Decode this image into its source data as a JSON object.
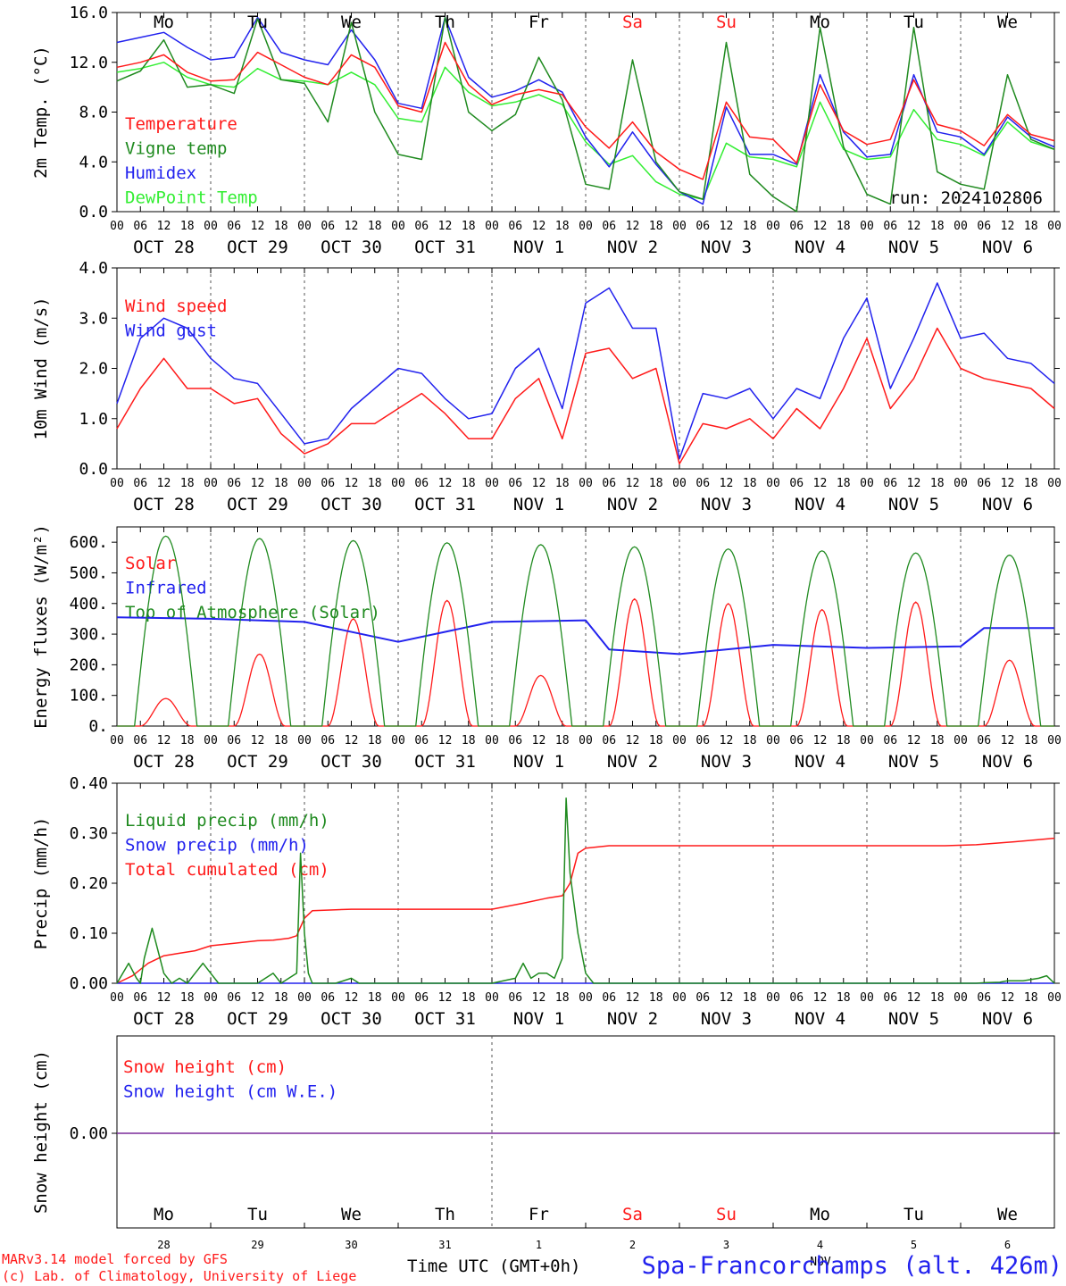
{
  "colors": {
    "red": "#ff1a1a",
    "green": "#1f8a1f",
    "blue": "#2222ee",
    "light_green": "#33ee33",
    "purple": "#7a2a9a",
    "grid": "#555555"
  },
  "day_names": [
    "Mo",
    "Tu",
    "We",
    "Th",
    "Fr",
    "Sa",
    "Su",
    "Mo",
    "Tu",
    "We"
  ],
  "weekend_days": [
    "Sa",
    "Su"
  ],
  "hour_ticks": [
    "00",
    "06",
    "12",
    "18"
  ],
  "date_labels": [
    "OCT 28",
    "OCT 29",
    "OCT 30",
    "OCT 31",
    "NOV  1",
    "NOV  2",
    "NOV  3",
    "NOV  4",
    "NOV  5",
    "NOV  6"
  ],
  "snow_day_numbers": [
    "28",
    "29",
    "30",
    "31",
    "1",
    "2",
    "3",
    "4",
    "5",
    "6"
  ],
  "snow_month_label": "NOV",
  "run_label": "run: 2024102806",
  "xlabel": "Time UTC (GMT+0h)",
  "footer": {
    "model_line": "MARv3.14 model forced by GFS",
    "copyright_line": "(c) Lab. of Climatology, University of Liege",
    "location": "Spa-Francorchamps (alt. 426m)"
  },
  "chart_data": [
    {
      "type": "line",
      "ylabel": "2m Temp. (°C)",
      "ylim": [
        0,
        16
      ],
      "yticks": [
        "0.0",
        "4.0",
        "8.0",
        "12.0",
        "16.0"
      ],
      "x_unit": "hours since Oct 28 00 UTC",
      "series": [
        {
          "name": "Temperature",
          "color": "red",
          "x": [
            0,
            6,
            12,
            18,
            24,
            30,
            36,
            42,
            48,
            54,
            60,
            66,
            72,
            78,
            84,
            90,
            96,
            102,
            108,
            114,
            120,
            126,
            132,
            138,
            144,
            150,
            156,
            162,
            168,
            174,
            180,
            186,
            192,
            198,
            204,
            210,
            216,
            222,
            228,
            234,
            240
          ],
          "y": [
            11.6,
            12.0,
            12.6,
            11.2,
            10.5,
            10.6,
            12.8,
            11.8,
            10.8,
            10.2,
            12.6,
            11.6,
            8.5,
            8.0,
            13.6,
            10.2,
            8.6,
            9.4,
            9.8,
            9.4,
            6.8,
            5.1,
            7.2,
            4.8,
            3.4,
            2.6,
            8.8,
            6.0,
            5.8,
            3.9,
            10.2,
            6.5,
            5.4,
            5.8,
            10.6,
            7.0,
            6.5,
            5.3,
            7.8,
            6.2,
            5.7
          ]
        },
        {
          "name": "Vigne temp",
          "color": "green",
          "x": [
            0,
            6,
            12,
            18,
            24,
            30,
            36,
            42,
            48,
            54,
            60,
            66,
            72,
            78,
            84,
            90,
            96,
            102,
            108,
            114,
            120,
            126,
            132,
            138,
            144,
            150,
            156,
            162,
            168,
            174,
            180,
            186,
            192,
            198,
            204,
            210,
            216,
            222,
            228,
            234,
            240
          ],
          "y": [
            10.5,
            11.3,
            13.8,
            10.0,
            10.2,
            9.5,
            15.5,
            10.6,
            10.3,
            7.2,
            15.2,
            8.0,
            4.6,
            4.2,
            15.6,
            8.0,
            6.5,
            7.8,
            12.4,
            9.0,
            2.2,
            1.8,
            12.2,
            4.0,
            1.6,
            1.0,
            13.6,
            3.0,
            1.2,
            0.0,
            14.8,
            5.2,
            1.4,
            0.6,
            14.8,
            3.2,
            2.2,
            1.8,
            11.0,
            5.8,
            5.0
          ]
        },
        {
          "name": "Humidex",
          "color": "blue",
          "x": [
            0,
            6,
            12,
            18,
            24,
            30,
            36,
            42,
            48,
            54,
            60,
            66,
            72,
            78,
            84,
            90,
            96,
            102,
            108,
            114,
            120,
            126,
            132,
            138,
            144,
            150,
            156,
            162,
            168,
            174,
            180,
            186,
            192,
            198,
            204,
            210,
            216,
            222,
            228,
            234,
            240
          ],
          "y": [
            13.6,
            14.0,
            14.4,
            13.2,
            12.2,
            12.4,
            15.6,
            12.8,
            12.2,
            11.8,
            14.6,
            12.2,
            8.7,
            8.3,
            15.6,
            10.8,
            9.2,
            9.7,
            10.6,
            9.6,
            6.0,
            3.6,
            6.4,
            3.8,
            1.6,
            0.6,
            8.4,
            4.6,
            4.6,
            3.8,
            11.0,
            6.4,
            4.4,
            4.6,
            11.0,
            6.4,
            6.0,
            4.6,
            7.6,
            6.0,
            5.2
          ]
        },
        {
          "name": "DewPoint Temp",
          "color": "light_green",
          "x": [
            0,
            6,
            12,
            18,
            24,
            30,
            36,
            42,
            48,
            54,
            60,
            66,
            72,
            78,
            84,
            90,
            96,
            102,
            108,
            114,
            120,
            126,
            132,
            138,
            144,
            150,
            156,
            162,
            168,
            174,
            180,
            186,
            192,
            198,
            204,
            210,
            216,
            222,
            228,
            234,
            240
          ],
          "y": [
            11.2,
            11.5,
            12.0,
            10.8,
            10.2,
            10.0,
            11.5,
            10.6,
            10.5,
            10.2,
            11.2,
            10.2,
            7.5,
            7.2,
            11.6,
            9.6,
            8.5,
            8.8,
            9.4,
            8.6,
            5.6,
            3.8,
            4.5,
            2.4,
            1.4,
            1.0,
            5.5,
            4.4,
            4.2,
            3.6,
            8.8,
            5.0,
            4.2,
            4.4,
            8.2,
            5.8,
            5.4,
            4.5,
            7.2,
            5.6,
            5.0
          ]
        }
      ]
    },
    {
      "type": "line",
      "ylabel": "10m Wind (m/s)",
      "ylim": [
        0,
        4
      ],
      "yticks": [
        "0.0",
        "1.0",
        "2.0",
        "3.0",
        "4.0"
      ],
      "series": [
        {
          "name": "Wind speed",
          "color": "red",
          "x": [
            0,
            6,
            12,
            18,
            24,
            30,
            36,
            42,
            48,
            54,
            60,
            66,
            72,
            78,
            84,
            90,
            96,
            102,
            108,
            114,
            120,
            126,
            132,
            138,
            144,
            150,
            156,
            162,
            168,
            174,
            180,
            186,
            192,
            198,
            204,
            210,
            216,
            222,
            228,
            234,
            240
          ],
          "y": [
            0.8,
            1.6,
            2.2,
            1.6,
            1.6,
            1.3,
            1.4,
            0.7,
            0.3,
            0.5,
            0.9,
            0.9,
            1.2,
            1.5,
            1.1,
            0.6,
            0.6,
            1.4,
            1.8,
            0.6,
            2.3,
            2.4,
            1.8,
            2.0,
            0.1,
            0.9,
            0.8,
            1.0,
            0.6,
            1.2,
            0.8,
            1.6,
            2.6,
            1.2,
            1.8,
            2.8,
            2.0,
            1.8,
            1.7,
            1.6,
            1.2
          ]
        },
        {
          "name": "Wind gust",
          "color": "blue",
          "x": [
            0,
            6,
            12,
            18,
            24,
            30,
            36,
            42,
            48,
            54,
            60,
            66,
            72,
            78,
            84,
            90,
            96,
            102,
            108,
            114,
            120,
            126,
            132,
            138,
            144,
            150,
            156,
            162,
            168,
            174,
            180,
            186,
            192,
            198,
            204,
            210,
            216,
            222,
            228,
            234,
            240
          ],
          "y": [
            1.3,
            2.6,
            3.0,
            2.8,
            2.2,
            1.8,
            1.7,
            1.1,
            0.5,
            0.6,
            1.2,
            1.6,
            2.0,
            1.9,
            1.4,
            1.0,
            1.1,
            2.0,
            2.4,
            1.2,
            3.3,
            3.6,
            2.8,
            2.8,
            0.2,
            1.5,
            1.4,
            1.6,
            1.0,
            1.6,
            1.4,
            2.6,
            3.4,
            1.6,
            2.6,
            3.7,
            2.6,
            2.7,
            2.2,
            2.1,
            1.7
          ]
        }
      ]
    },
    {
      "type": "line",
      "ylabel": "Energy fluxes (W/m²)",
      "ylim": [
        0,
        650
      ],
      "yticks": [
        "0.",
        "100.",
        "200.",
        "300.",
        "400.",
        "500.",
        "600."
      ],
      "series": [
        {
          "name": "Solar",
          "color": "red",
          "peaks": [
            90,
            235,
            350,
            410,
            165,
            415,
            400,
            380,
            405,
            215
          ]
        },
        {
          "name": "Infrared",
          "color": "blue",
          "x": [
            0,
            24,
            48,
            72,
            96,
            120,
            126,
            144,
            168,
            192,
            216,
            222,
            240
          ],
          "y": [
            355,
            350,
            340,
            275,
            340,
            345,
            250,
            235,
            265,
            255,
            260,
            320,
            320
          ]
        },
        {
          "name": "Top of Atmosphere (Solar)",
          "color": "green",
          "peaks": [
            620,
            612,
            605,
            598,
            592,
            585,
            578,
            572,
            565,
            558
          ]
        }
      ]
    },
    {
      "type": "line",
      "ylabel": "Precip (mm/h)",
      "ylim": [
        0,
        0.4
      ],
      "yticks": [
        "0.00",
        "0.10",
        "0.20",
        "0.30",
        "0.40"
      ],
      "series": [
        {
          "name": "Liquid precip (mm/h)",
          "color": "green",
          "x": [
            0,
            3,
            5,
            6,
            7,
            9,
            10,
            12,
            14,
            16,
            18,
            20,
            22,
            24,
            26,
            30,
            36,
            40,
            42,
            44,
            46,
            47,
            48,
            49,
            50,
            52,
            56,
            60,
            62,
            64,
            80,
            96,
            102,
            104,
            106,
            108,
            110,
            112,
            114,
            115,
            116,
            118,
            120,
            122,
            126,
            200,
            220,
            222,
            226,
            228,
            232,
            236,
            238,
            240
          ],
          "y": [
            0,
            0.04,
            0.01,
            0,
            0.05,
            0.11,
            0.08,
            0.02,
            0,
            0.01,
            0,
            0.02,
            0.04,
            0.02,
            0,
            0,
            0,
            0.02,
            0,
            0.01,
            0.02,
            0.26,
            0.1,
            0.02,
            0,
            0,
            0,
            0.01,
            0,
            0,
            0,
            0,
            0.01,
            0.04,
            0.01,
            0.02,
            0.02,
            0.01,
            0.05,
            0.37,
            0.22,
            0.1,
            0.02,
            0,
            0,
            0,
            0,
            0.001,
            0.002,
            0.005,
            0.005,
            0.01,
            0.015,
            0
          ]
        },
        {
          "name": "Snow precip (mm/h)",
          "color": "blue",
          "x": [
            0,
            240
          ],
          "y": [
            0,
            0
          ]
        },
        {
          "name": "Total cumulated (cm)",
          "color": "red",
          "x": [
            0,
            4,
            8,
            12,
            16,
            20,
            24,
            30,
            36,
            40,
            44,
            46,
            48,
            50,
            56,
            60,
            72,
            84,
            96,
            104,
            110,
            114,
            116,
            118,
            120,
            126,
            160,
            200,
            212,
            220,
            230,
            240
          ],
          "y": [
            0,
            0.015,
            0.04,
            0.055,
            0.06,
            0.065,
            0.075,
            0.08,
            0.085,
            0.086,
            0.09,
            0.095,
            0.13,
            0.145,
            0.147,
            0.148,
            0.148,
            0.148,
            0.148,
            0.16,
            0.17,
            0.175,
            0.2,
            0.26,
            0.27,
            0.275,
            0.275,
            0.275,
            0.275,
            0.277,
            0.283,
            0.29
          ]
        }
      ]
    },
    {
      "type": "line",
      "ylabel": "Snow height (cm)",
      "yticks": [
        "0.00"
      ],
      "series": [
        {
          "name": "Snow height (cm)",
          "color": "red",
          "x": [
            0,
            240
          ],
          "y": [
            0,
            0
          ]
        },
        {
          "name": "Snow height (cm W.E.)",
          "color": "blue",
          "x": [
            0,
            240
          ],
          "y": [
            0,
            0
          ]
        }
      ]
    }
  ]
}
